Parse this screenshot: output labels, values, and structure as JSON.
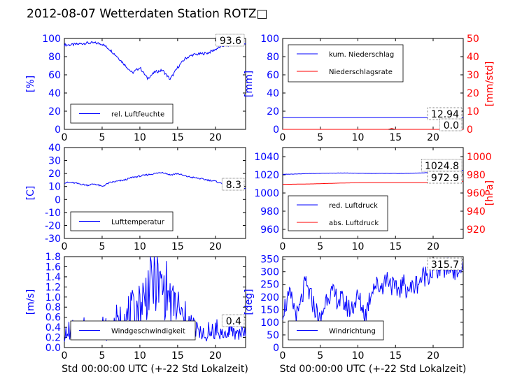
{
  "figure": {
    "title": "2012-08-07 Wetterdaten Station ROTZ□",
    "xlabel": "Std 00:00:00 UTC (+-22 Std Lokalzeit)"
  },
  "colors": {
    "blue": "#0000ff",
    "red": "#ff0000",
    "light_blue": "#8080ff",
    "axis": "#000000"
  },
  "chart_data": [
    {
      "id": "humidity",
      "type": "line",
      "xlim": [
        0,
        24
      ],
      "xticks": [
        0,
        5,
        10,
        15,
        20
      ],
      "ylim": [
        0,
        100
      ],
      "yticks": [
        0,
        20,
        40,
        60,
        80,
        100
      ],
      "ylabel": "[%]",
      "last_value": "93.6",
      "legend": {
        "placement": "lower-left",
        "entries": [
          {
            "label": "rel. Luftfeuchte",
            "color": "#0000ff"
          }
        ]
      },
      "series": [
        {
          "name": "rel. Luftfeuchte",
          "color": "#0000ff",
          "x": [
            0,
            1,
            2,
            3,
            4,
            5,
            6,
            7,
            8,
            9,
            10,
            11,
            12,
            13,
            14,
            15,
            16,
            17,
            18,
            19,
            20,
            21,
            22,
            23,
            24
          ],
          "y": [
            93,
            93,
            94,
            95,
            95,
            94,
            88,
            80,
            71,
            62,
            68,
            56,
            63,
            65,
            55,
            68,
            78,
            82,
            83,
            84,
            88,
            92,
            93,
            94,
            94
          ]
        }
      ]
    },
    {
      "id": "precipitation",
      "type": "line",
      "xlim": [
        0,
        24
      ],
      "xticks": [
        0,
        5,
        10,
        15,
        20
      ],
      "ylim": [
        0,
        100
      ],
      "yticks": [
        0,
        20,
        40,
        60,
        80,
        100
      ],
      "ylabel": "[mm]",
      "y2lim": [
        0,
        50
      ],
      "y2ticks": [
        0,
        10,
        20,
        30,
        40,
        50
      ],
      "y2label": "[mm/std]",
      "last_value": "12.94",
      "last_value2": "0.0",
      "legend": {
        "placement": "upper-left",
        "entries": [
          {
            "label": "kum. Niederschlag",
            "color": "#0000ff"
          },
          {
            "label": "Niederschlagsrate",
            "color": "#ff0000"
          }
        ]
      },
      "series": [
        {
          "name": "kum. Niederschlag",
          "axis": "left",
          "color": "#0000ff",
          "x": [
            0,
            24
          ],
          "y": [
            12.94,
            12.94
          ]
        },
        {
          "name": "Niederschlagsrate",
          "axis": "right",
          "color": "#ff0000",
          "x": [
            0,
            14,
            14.5,
            15,
            24
          ],
          "y": [
            0,
            0,
            0.5,
            0,
            0
          ]
        }
      ]
    },
    {
      "id": "temperature",
      "type": "line",
      "xlim": [
        0,
        24
      ],
      "xticks": [
        0,
        5,
        10,
        15,
        20
      ],
      "ylim": [
        -30,
        40
      ],
      "yticks": [
        -30,
        -20,
        -10,
        0,
        10,
        20,
        30,
        40
      ],
      "ylabel": "[C]",
      "last_value": "8.3",
      "legend": {
        "placement": "lower-left",
        "entries": [
          {
            "label": "Lufttemperatur",
            "color": "#0000ff"
          }
        ]
      },
      "series": [
        {
          "name": "Lufttemperatur",
          "color": "#0000ff",
          "x": [
            0,
            1,
            2,
            3,
            4,
            5,
            6,
            7,
            8,
            9,
            10,
            11,
            12,
            13,
            14,
            15,
            16,
            17,
            18,
            19,
            20,
            21,
            22,
            23,
            24
          ],
          "y": [
            13,
            13,
            12,
            11,
            12,
            10,
            13,
            14,
            15,
            17,
            18,
            19,
            20,
            21,
            19,
            20,
            18,
            17,
            16,
            15,
            14,
            12,
            10,
            9,
            8.3
          ]
        }
      ]
    },
    {
      "id": "pressure",
      "type": "line",
      "xlim": [
        0,
        24
      ],
      "xticks": [
        0,
        5,
        10,
        15,
        20
      ],
      "ylim": [
        950,
        1050
      ],
      "yticks": [
        960,
        980,
        1000,
        1020,
        1040
      ],
      "y2lim": [
        910,
        1010
      ],
      "y2ticks": [
        920,
        940,
        960,
        980,
        1000
      ],
      "y2label": "[hPa]",
      "last_value": "1024.8",
      "last_value2": "972.9",
      "legend": {
        "placement": "lower-left",
        "entries": [
          {
            "label": "red. Luftdruck",
            "color": "#0000ff"
          },
          {
            "label": "abs. Luftdruck",
            "color": "#ff0000"
          }
        ]
      },
      "series": [
        {
          "name": "red. Luftdruck",
          "axis": "left",
          "color": "#0000ff",
          "x": [
            0,
            4,
            8,
            12,
            16,
            20,
            24
          ],
          "y": [
            1020.5,
            1021.5,
            1022,
            1021.5,
            1021.5,
            1022.5,
            1024.8
          ]
        },
        {
          "name": "abs. Luftdruck",
          "axis": "right",
          "color": "#ff0000",
          "x": [
            0,
            4,
            8,
            12,
            16,
            20,
            24
          ],
          "y": [
            969.5,
            970,
            971,
            971.5,
            971.5,
            971.5,
            972.9
          ]
        }
      ]
    },
    {
      "id": "wind_speed",
      "type": "line",
      "xlim": [
        0,
        24
      ],
      "xticks": [
        0,
        5,
        10,
        15,
        20
      ],
      "ylim": [
        0,
        1.8
      ],
      "yticks": [
        0.0,
        0.2,
        0.4,
        0.6,
        0.8,
        1.0,
        1.2,
        1.4,
        1.6,
        1.8
      ],
      "ylabel": "[m/s]",
      "last_value": "0.4",
      "legend": {
        "placement": "lower-left",
        "entries": [
          {
            "label": "Windgeschwindigkeit",
            "color": "#0000ff"
          }
        ]
      },
      "series": [
        {
          "name": "Windgeschwindigkeit",
          "color": "#0000ff",
          "x": [
            0,
            1,
            2,
            3,
            4,
            5,
            6,
            7,
            8,
            9,
            10,
            11,
            12,
            13,
            14,
            15,
            16,
            17,
            18,
            19,
            20,
            21,
            22,
            23,
            24
          ],
          "y": [
            0.3,
            0.4,
            0.3,
            0.5,
            0.4,
            0.5,
            0.4,
            0.6,
            0.7,
            0.8,
            1.0,
            1.3,
            1.6,
            1.4,
            1.1,
            0.9,
            0.6,
            0.5,
            0.3,
            0.3,
            0.4,
            0.3,
            0.4,
            0.3,
            0.4
          ]
        }
      ]
    },
    {
      "id": "wind_direction",
      "type": "line",
      "xlim": [
        0,
        24
      ],
      "xticks": [
        0,
        5,
        10,
        15,
        20
      ],
      "ylim": [
        0,
        360
      ],
      "yticks": [
        0,
        50,
        100,
        150,
        200,
        250,
        300,
        350
      ],
      "ylabel": "[deg]",
      "last_value": "315.7",
      "legend": {
        "placement": "lower-left",
        "entries": [
          {
            "label": "Windrichtung",
            "color": "#0000ff"
          }
        ]
      },
      "series": [
        {
          "name": "Windrichtung",
          "color": "#0000ff",
          "x": [
            0,
            1,
            2,
            3,
            4,
            5,
            6,
            7,
            8,
            9,
            10,
            11,
            12,
            13,
            14,
            15,
            16,
            17,
            18,
            19,
            20,
            21,
            22,
            23,
            24
          ],
          "y": [
            150,
            200,
            120,
            250,
            180,
            100,
            220,
            200,
            180,
            150,
            200,
            130,
            250,
            240,
            280,
            220,
            250,
            230,
            260,
            290,
            300,
            310,
            320,
            310,
            315
          ]
        }
      ]
    }
  ]
}
